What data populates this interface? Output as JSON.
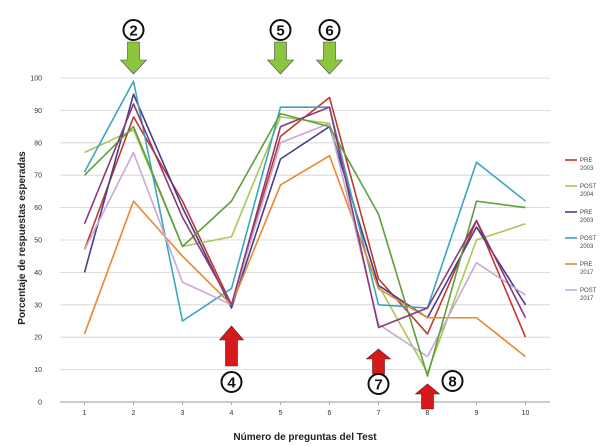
{
  "chart_data": {
    "type": "line",
    "title": "",
    "xlabel": "Número de preguntas del Test",
    "ylabel": "Porcentaje de respuestas esperadas",
    "x": [
      1,
      2,
      3,
      4,
      5,
      6,
      7,
      8,
      9,
      10
    ],
    "ylim": [
      0,
      100
    ],
    "yticks": [
      0,
      10,
      20,
      30,
      40,
      50,
      60,
      70,
      80,
      90,
      100
    ],
    "grid": true,
    "legend": "right",
    "series": [
      {
        "name": "PRE 2003",
        "color": "#c0392b",
        "values": [
          47,
          88,
          62,
          30,
          82,
          94,
          38,
          21,
          56,
          20
        ]
      },
      {
        "name": "POST 2004",
        "color": "#a7c957",
        "values": [
          77,
          84,
          48,
          51,
          88,
          86,
          36,
          9,
          50,
          55
        ]
      },
      {
        "name": "PRE 2003",
        "color": "#4b3b8a",
        "values": [
          40,
          95,
          60,
          29,
          75,
          85,
          36,
          26,
          54,
          30
        ]
      },
      {
        "name": "POST 2003",
        "color": "#3aa6c0",
        "values": [
          71,
          99,
          25,
          35,
          91,
          91,
          30,
          29,
          74,
          62
        ]
      },
      {
        "name": "PRE 2017",
        "color": "#e8872e",
        "values": [
          21,
          62,
          45,
          30,
          67,
          76,
          35,
          26,
          26,
          14
        ]
      },
      {
        "name": "POST 2017",
        "color": "#c8a8d8",
        "values": [
          47,
          77,
          37,
          30,
          80,
          86,
          24,
          14,
          43,
          33
        ]
      },
      {
        "name": "",
        "color": "#5d9e3f",
        "values": [
          70,
          85,
          48,
          62,
          89,
          85,
          58,
          8,
          62,
          60
        ]
      },
      {
        "name": "",
        "color": "#8c3a78",
        "values": [
          55,
          92,
          57,
          30,
          85,
          91,
          23,
          29,
          56,
          26
        ]
      }
    ],
    "markers": [
      {
        "label": "2",
        "x": 2,
        "arrow": "down",
        "color": "#8cc63f"
      },
      {
        "label": "5",
        "x": 5,
        "arrow": "down",
        "color": "#8cc63f"
      },
      {
        "label": "6",
        "x": 6,
        "arrow": "down",
        "color": "#8cc63f"
      },
      {
        "label": "4",
        "x": 4,
        "arrow": "up",
        "color": "#d7191c"
      },
      {
        "label": "7",
        "x": 7,
        "arrow": "up",
        "color": "#d7191c"
      },
      {
        "label": "8",
        "x": 8,
        "arrow": "up",
        "color": "#d7191c"
      }
    ]
  }
}
